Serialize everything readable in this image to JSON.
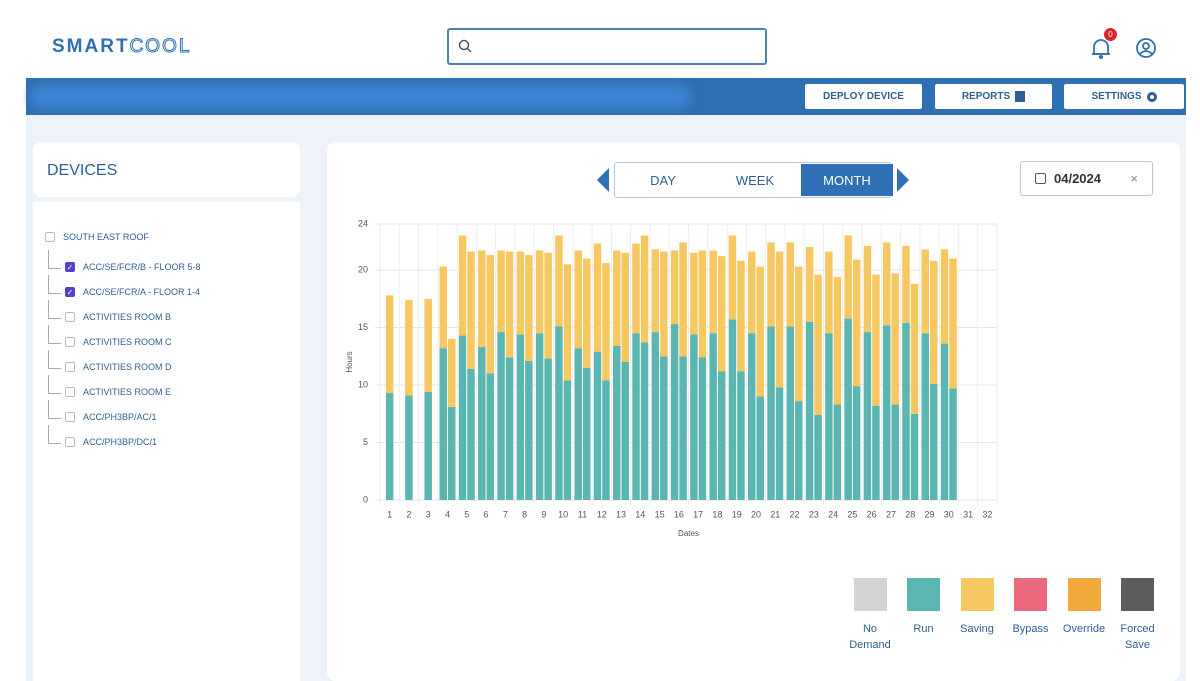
{
  "header": {
    "logo": {
      "strong": "SMART",
      "light": "COOL"
    },
    "notifications": "0"
  },
  "toolbar": {
    "buttons": [
      "DEPLOY DEVICE",
      "REPORTS",
      "SETTINGS"
    ]
  },
  "devices": {
    "title": "DEVICES",
    "root": {
      "label": "SOUTH EAST ROOF",
      "checked": false
    },
    "children": [
      {
        "label": "ACC/SE/FCR/B - FLOOR 5-8",
        "checked": true
      },
      {
        "label": "ACC/SE/FCR/A - FLOOR 1-4",
        "checked": true
      },
      {
        "label": "ACTIVITIES ROOM B",
        "checked": false
      },
      {
        "label": "ACTIVITIES ROOM C",
        "checked": false
      },
      {
        "label": "ACTIVITIES ROOM D",
        "checked": false
      },
      {
        "label": "ACTIVITIES ROOM E",
        "checked": false
      },
      {
        "label": "ACC/PH3BP/AC/1",
        "checked": false
      },
      {
        "label": "ACC/PH3BP/DC/1",
        "checked": false
      }
    ]
  },
  "tabs": {
    "items": [
      "DAY",
      "WEEK",
      "MONTH"
    ],
    "active": 2
  },
  "date": "04/2024",
  "chart_data": {
    "type": "stacked_bar",
    "y_label": "Hours",
    "x_label": "Dates",
    "categories": [
      "1",
      "2",
      "3",
      "4",
      "5",
      "6",
      "7",
      "8",
      "9",
      "10",
      "11",
      "12",
      "13",
      "14",
      "15",
      "16",
      "17",
      "18",
      "19",
      "20",
      "21",
      "22",
      "23",
      "24",
      "25",
      "26",
      "27",
      "28",
      "29",
      "30",
      "31",
      "32"
    ],
    "ylim": [
      0,
      24
    ],
    "yticks": [
      0,
      5,
      10,
      15,
      20,
      24
    ],
    "grid": true,
    "legend": [
      {
        "name": "No Demand",
        "color": "#d3d3d3"
      },
      {
        "name": "Run",
        "color": "#5bb5b0"
      },
      {
        "name": "Saving",
        "color": "#f6c862"
      },
      {
        "name": "Bypass",
        "color": "#ec6a7e"
      },
      {
        "name": "Override",
        "color": "#f1a83c"
      },
      {
        "name": "Forced Save",
        "color": "#5c5c5c"
      }
    ],
    "groups": [
      {
        "run": [
          9.3,
          9.1,
          9.4,
          13.2,
          14.3,
          13.3,
          14.6,
          14.4,
          14.5,
          15.1,
          13.2,
          12.9,
          13.4,
          14.5,
          14.6,
          15.3,
          14.4,
          14.5,
          15.7,
          14.5,
          15.1,
          15.1,
          15.5,
          14.5,
          15.8,
          14.6,
          15.2,
          15.4,
          14.5,
          13.6,
          null,
          null
        ],
        "saving": [
          8.5,
          8.3,
          8.1,
          7.1,
          8.7,
          8.4,
          7.1,
          7.2,
          7.2,
          7.9,
          8.5,
          9.4,
          8.3,
          7.8,
          7.2,
          6.4,
          7.1,
          7.2,
          7.3,
          7.1,
          7.3,
          7.3,
          6.5,
          7.1,
          7.2,
          7.5,
          7.2,
          6.7,
          7.3,
          8.2,
          null,
          null
        ]
      },
      {
        "run": [
          null,
          null,
          null,
          8.1,
          11.4,
          11.0,
          12.4,
          12.1,
          12.3,
          10.4,
          11.5,
          10.4,
          12.0,
          13.7,
          12.5,
          12.5,
          12.4,
          11.2,
          11.2,
          9.0,
          9.8,
          8.6,
          7.4,
          8.3,
          9.9,
          8.2,
          8.3,
          7.5,
          10.1,
          9.7,
          null,
          null
        ],
        "saving": [
          null,
          null,
          null,
          5.9,
          10.2,
          10.3,
          9.2,
          9.2,
          9.2,
          10.1,
          9.5,
          10.2,
          9.5,
          9.3,
          9.1,
          9.9,
          9.3,
          10.0,
          9.6,
          11.3,
          11.8,
          11.7,
          12.2,
          11.1,
          11.0,
          11.4,
          11.4,
          11.3,
          10.7,
          11.3,
          null,
          null
        ]
      }
    ]
  }
}
